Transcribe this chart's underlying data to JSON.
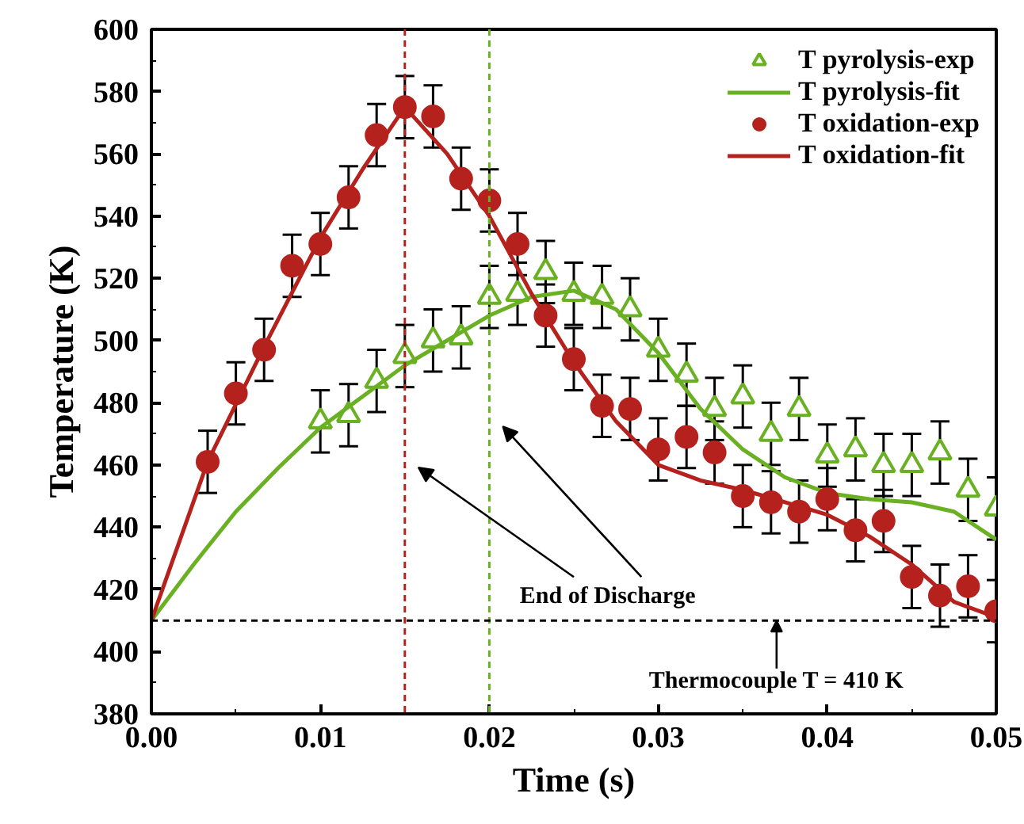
{
  "chart_data": {
    "type": "scatter",
    "xlabel": "Time (s)",
    "ylabel": "Temperature (K)",
    "xlim": [
      0,
      0.05
    ],
    "ylim": [
      380,
      600
    ],
    "xticks": [
      {
        "value": 0,
        "label": "0.00"
      },
      {
        "value": 0.01,
        "label": "0.01"
      },
      {
        "value": 0.02,
        "label": "0.02"
      },
      {
        "value": 0.03,
        "label": "0.03"
      },
      {
        "value": 0.04,
        "label": "0.04"
      },
      {
        "value": 0.05,
        "label": "0.05"
      }
    ],
    "yticks": [
      380,
      400,
      420,
      440,
      460,
      480,
      500,
      520,
      540,
      560,
      580,
      600
    ],
    "grid": false,
    "legend": "top right",
    "series": [
      {
        "name": "T pyrolysis-exp",
        "marker": "triangle",
        "color": "#6ab023",
        "x": [
          0.01,
          0.01167,
          0.01333,
          0.015,
          0.01667,
          0.01833,
          0.02,
          0.02167,
          0.02333,
          0.025,
          0.02667,
          0.02833,
          0.03,
          0.03167,
          0.03333,
          0.035,
          0.03667,
          0.03833,
          0.04,
          0.04167,
          0.04333,
          0.045,
          0.04667,
          0.04833,
          0.05
        ],
        "values": [
          474,
          476,
          487,
          495,
          500,
          501,
          514,
          515,
          522,
          515,
          514,
          510,
          497,
          489,
          478,
          482,
          470,
          478,
          463,
          465,
          460,
          460,
          464,
          452,
          446
        ],
        "errors": [
          10,
          10,
          10,
          10,
          10,
          10,
          10,
          10,
          10,
          10,
          10,
          10,
          10,
          10,
          10,
          10,
          10,
          10,
          10,
          10,
          10,
          10,
          10,
          10,
          10
        ]
      },
      {
        "name": "T pyrolysis-fit",
        "type": "line",
        "color": "#6ab023",
        "x": [
          0,
          0.0025,
          0.005,
          0.0075,
          0.01,
          0.0125,
          0.015,
          0.0175,
          0.02,
          0.0225,
          0.025,
          0.0275,
          0.03,
          0.0325,
          0.035,
          0.0375,
          0.04,
          0.0425,
          0.045,
          0.0475,
          0.05
        ],
        "values": [
          410,
          428,
          445,
          459,
          472,
          482,
          492,
          500,
          508,
          514,
          516,
          510,
          496,
          478,
          465,
          456,
          451,
          449,
          448,
          445,
          436
        ]
      },
      {
        "name": "T oxidation-exp",
        "marker": "circle",
        "color": "#b5221e",
        "x": [
          0.00333,
          0.005,
          0.00667,
          0.00833,
          0.01,
          0.01167,
          0.01333,
          0.015,
          0.01667,
          0.01833,
          0.02,
          0.02167,
          0.02333,
          0.025,
          0.02667,
          0.02833,
          0.03,
          0.03167,
          0.03333,
          0.035,
          0.03667,
          0.03833,
          0.04,
          0.04167,
          0.04333,
          0.045,
          0.04667,
          0.04833,
          0.05
        ],
        "values": [
          461,
          483,
          497,
          524,
          531,
          546,
          566,
          575,
          572,
          552,
          545,
          531,
          508,
          494,
          479,
          478,
          465,
          469,
          464,
          450,
          448,
          445,
          449,
          439,
          442,
          424,
          418,
          421,
          413
        ],
        "errors": [
          10,
          10,
          10,
          10,
          10,
          10,
          10,
          10,
          10,
          10,
          10,
          10,
          10,
          10,
          10,
          10,
          10,
          10,
          10,
          10,
          10,
          10,
          10,
          10,
          10,
          10,
          10,
          10,
          10
        ]
      },
      {
        "name": "T oxidation-fit",
        "type": "line",
        "color": "#b5221e",
        "x": [
          0,
          0.00333,
          0.00667,
          0.01,
          0.0125,
          0.015,
          0.0175,
          0.02,
          0.0225,
          0.025,
          0.0275,
          0.03,
          0.0325,
          0.035,
          0.0375,
          0.04,
          0.0425,
          0.045,
          0.0475,
          0.05
        ],
        "values": [
          410,
          461,
          498,
          533,
          555,
          575,
          560,
          540,
          515,
          493,
          474,
          460,
          455,
          452,
          448,
          444,
          437,
          428,
          416,
          411
        ]
      }
    ],
    "ref_lines": [
      {
        "axis": "x",
        "value": 0.015,
        "color": "#b5221e",
        "line_style": "dashed"
      },
      {
        "axis": "x",
        "value": 0.02,
        "color": "#6ab023",
        "line_style": "dashed"
      },
      {
        "axis": "y",
        "value": 410,
        "color": "#000000",
        "line_style": "dashed"
      }
    ],
    "annotations": [
      "End of Discharge",
      {
        "text": "Thermocouple T = 410 K",
        "x": 0.037,
        "y": 410
      }
    ]
  }
}
